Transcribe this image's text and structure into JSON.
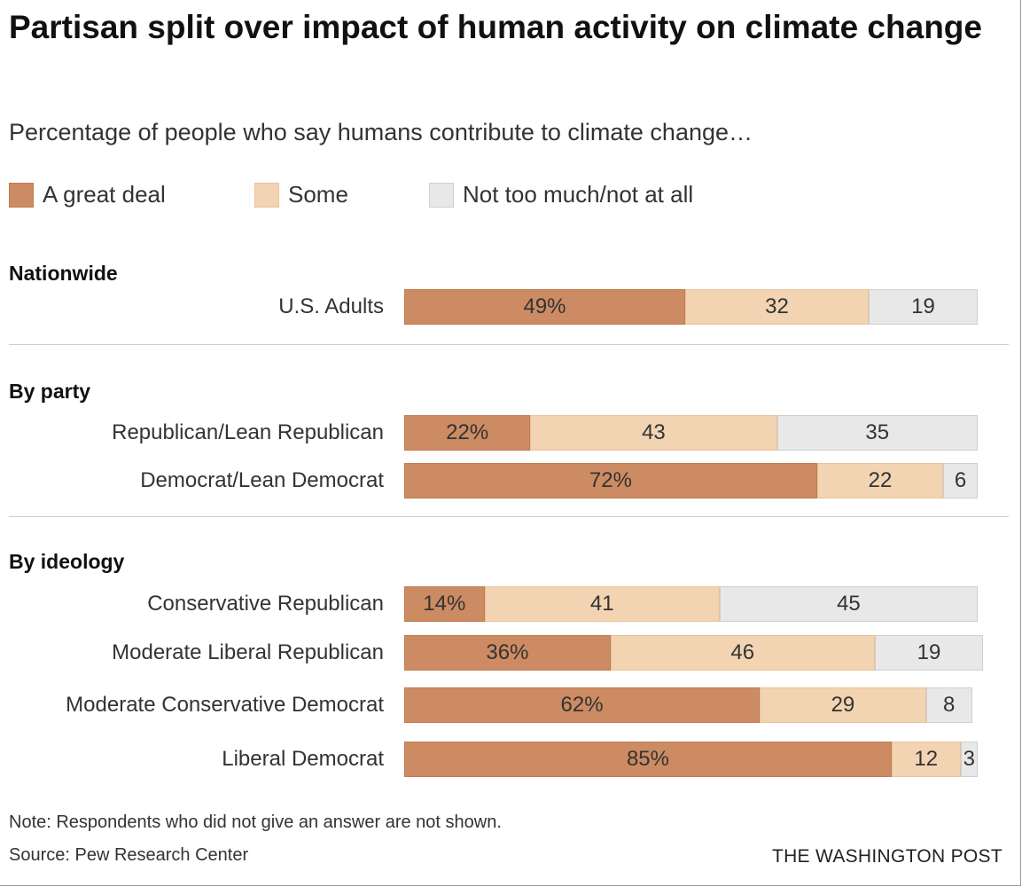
{
  "chart_data": {
    "type": "bar",
    "stacked": true,
    "orientation": "horizontal",
    "title": "Partisan split over impact of human activity on climate change",
    "subtitle": "Percentage of people who say humans contribute to climate change…",
    "legend_position": "top",
    "series": [
      {
        "name": "A great deal",
        "color": "#cc8b62"
      },
      {
        "name": "Some",
        "color": "#f2d3b2"
      },
      {
        "name": "Not too much/not at all",
        "color": "#e8e8e8"
      }
    ],
    "sections": [
      {
        "title": "Nationwide",
        "rows": [
          {
            "label": "U.S. Adults",
            "values": [
              49,
              32,
              19
            ],
            "labels": [
              "49%",
              "32",
              "19"
            ]
          }
        ]
      },
      {
        "title": "By party",
        "rows": [
          {
            "label": "Republican/Lean Republican",
            "values": [
              22,
              43,
              35
            ],
            "labels": [
              "22%",
              "43",
              "35"
            ]
          },
          {
            "label": "Democrat/Lean Democrat",
            "values": [
              72,
              22,
              6
            ],
            "labels": [
              "72%",
              "22",
              "6"
            ]
          }
        ]
      },
      {
        "title": "By ideology",
        "rows": [
          {
            "label": "Conservative Republican",
            "values": [
              14,
              41,
              45
            ],
            "labels": [
              "14%",
              "41",
              "45"
            ]
          },
          {
            "label": "Moderate Liberal Republican",
            "values": [
              36,
              46,
              19
            ],
            "labels": [
              "36%",
              "46",
              "19"
            ]
          },
          {
            "label": "Moderate Conservative Democrat",
            "values": [
              62,
              29,
              8
            ],
            "labels": [
              "62%",
              "29",
              "8"
            ]
          },
          {
            "label": "Liberal Democrat",
            "values": [
              85,
              12,
              3
            ],
            "labels": [
              "85%",
              "12",
              "3"
            ]
          }
        ]
      }
    ],
    "xlim": [
      0,
      100
    ],
    "grid": false
  },
  "footer": {
    "note": "Note: Respondents who did not give an answer are not shown.",
    "source": "Source: Pew Research Center",
    "brand": "THE WASHINGTON POST"
  }
}
